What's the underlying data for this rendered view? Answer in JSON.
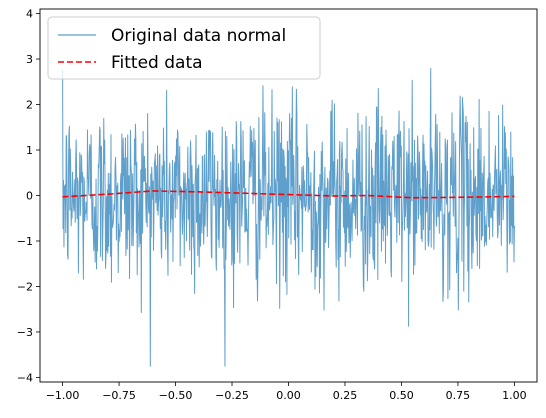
{
  "chart_data": {
    "type": "line",
    "title": "",
    "xlabel": "",
    "ylabel": "",
    "xlim": [
      -1.1,
      1.1
    ],
    "ylim": [
      -4.1,
      4.1
    ],
    "xticks": [
      -1.0,
      -0.75,
      -0.5,
      -0.25,
      0.0,
      0.25,
      0.5,
      0.75,
      1.0
    ],
    "xtick_labels": [
      "−1.00",
      "−0.75",
      "−0.50",
      "−0.25",
      "0.00",
      "0.25",
      "0.50",
      "0.75",
      "1.00"
    ],
    "yticks": [
      -4,
      -3,
      -2,
      -1,
      0,
      1,
      2,
      3,
      4
    ],
    "ytick_labels": [
      "−4",
      "−3",
      "−2",
      "−1",
      "0",
      "1",
      "2",
      "3",
      "4"
    ],
    "grid": false,
    "legend_position": "upper-left",
    "series": [
      {
        "name": "Original data normal",
        "style": "solid",
        "color": "#5f9fcb",
        "description_values": "1000 samples of standard normal noise on x in [-1, 1]",
        "x_range": [
          -1.0,
          1.0
        ],
        "y_min": -3.75,
        "y_max": 3.8
      },
      {
        "name": "Fitted data",
        "style": "dashed",
        "color": "#ff0000",
        "x": [
          -1.0,
          -0.8,
          -0.6,
          -0.4,
          -0.2,
          0.0,
          0.2,
          0.35,
          0.55,
          0.75,
          1.0
        ],
        "y": [
          -0.03,
          0.03,
          0.1,
          0.08,
          0.05,
          0.02,
          -0.01,
          0.0,
          -0.05,
          -0.04,
          -0.02
        ]
      }
    ]
  }
}
